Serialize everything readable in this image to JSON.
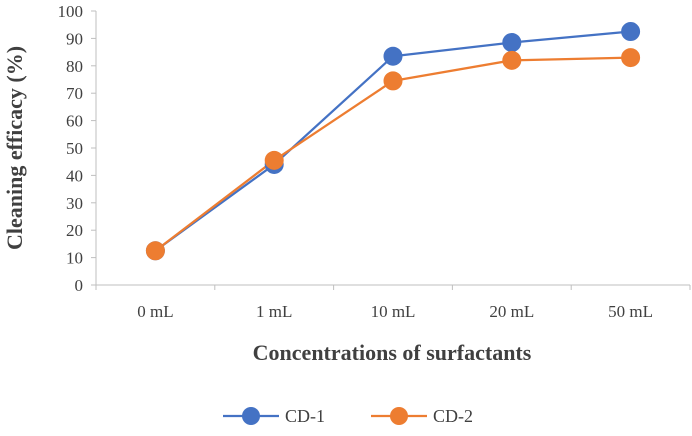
{
  "chart_data": {
    "type": "line",
    "title": "",
    "xlabel": "Concentrations of surfactants",
    "ylabel": "Cleaning efficacy (%)",
    "categories": [
      "0 mL",
      "1 mL",
      "10 mL",
      "20 mL",
      "50 mL"
    ],
    "ylim": [
      0,
      100
    ],
    "yticks": [
      0,
      10,
      20,
      30,
      40,
      50,
      60,
      70,
      80,
      90,
      100
    ],
    "grid": false,
    "legend_position": "bottom",
    "series": [
      {
        "name": "CD-1",
        "color": "#4472C4",
        "values": [
          12.5,
          44,
          83.5,
          88.5,
          92.5
        ]
      },
      {
        "name": "CD-2",
        "color": "#ED7D31",
        "values": [
          12.5,
          45.5,
          74.5,
          82,
          83
        ]
      }
    ]
  }
}
